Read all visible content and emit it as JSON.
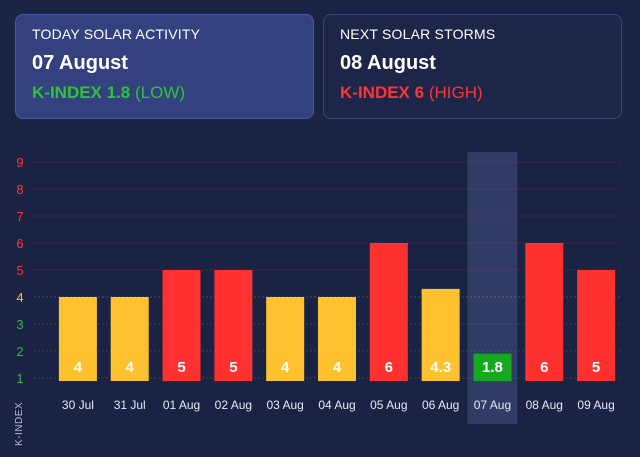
{
  "today": {
    "title": "TODAY SOLAR ACTIVITY",
    "date": "07 August",
    "kindex_prefix": "K-INDEX 1.8",
    "kindex_level": "(LOW)",
    "color": "#2fc33a"
  },
  "storm": {
    "title": "NEXT SOLAR STORMS",
    "date": "08 August",
    "kindex_prefix": "K-INDEX 6",
    "kindex_level": "(HIGH)",
    "color": "#ff3535"
  },
  "chart_data": {
    "type": "bar",
    "categories": [
      "30 Jul",
      "31 Jul",
      "01 Aug",
      "02 Aug",
      "03 Aug",
      "04 Aug",
      "05 Aug",
      "06 Aug",
      "07 Aug",
      "08 Aug",
      "09 Aug"
    ],
    "values": [
      4,
      4,
      5,
      5,
      4,
      4,
      6,
      4.3,
      1.8,
      6,
      5
    ],
    "value_labels": [
      "4",
      "4",
      "5",
      "5",
      "4",
      "4",
      "6",
      "4.3",
      "1.8",
      "6",
      "5"
    ],
    "bar_colors": [
      "#ffc22e",
      "#ffc22e",
      "#ff3030",
      "#ff3030",
      "#ffc22e",
      "#ffc22e",
      "#ff3030",
      "#ffc22e",
      "#16a91f",
      "#ff3030",
      "#ff3030"
    ],
    "ylabel": "K-INDEX",
    "yticks": [
      "1",
      "2",
      "3",
      "4",
      "5",
      "6",
      "7",
      "8",
      "9"
    ],
    "ytick_colors": [
      "#3ab54a",
      "#3ab54a",
      "#3ab54a",
      "#ffc22e",
      "#ff3535",
      "#ff3535",
      "#ff3535",
      "#ff3535",
      "#ff3535"
    ],
    "ylim": [
      1,
      9
    ],
    "highlighted_category": "07 Aug",
    "grid": true
  }
}
